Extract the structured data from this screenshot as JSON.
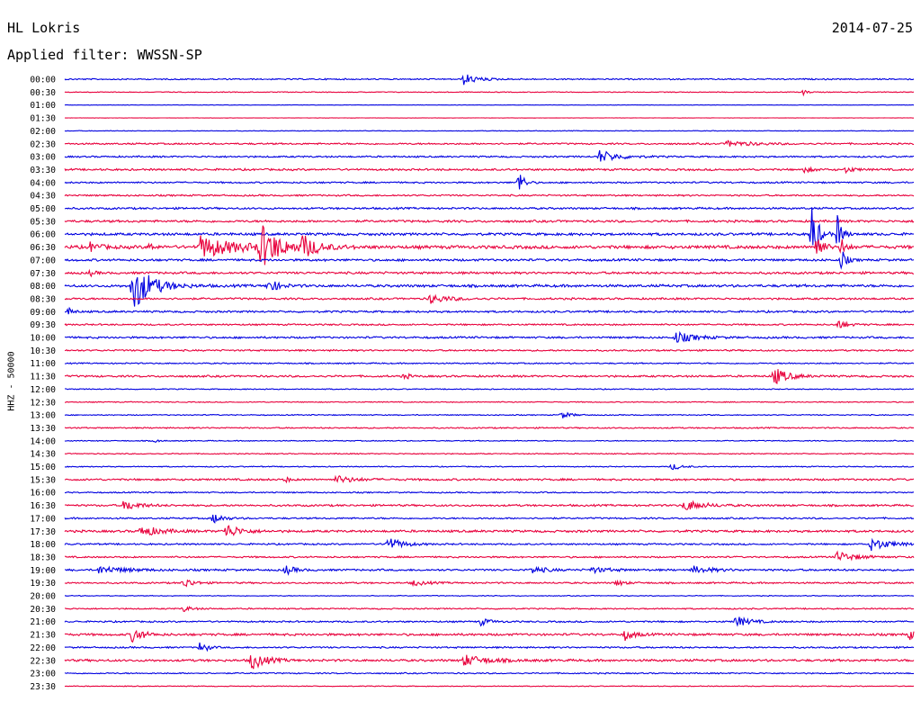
{
  "header": {
    "station": "HL Lokris",
    "date": "2014-07-25",
    "filter_label": "Applied filter: WWSSN-SP"
  },
  "chart_data": {
    "type": "line",
    "title": "HL Lokris",
    "ylabel": "HHZ - 50000",
    "series_colors": [
      "#0000e0",
      "#e8003c"
    ],
    "x_range_minutes_per_trace": [
      0,
      30
    ],
    "y_ticks": [
      "00:00",
      "00:30",
      "01:00",
      "01:30",
      "02:00",
      "02:30",
      "03:00",
      "03:30",
      "04:00",
      "04:30",
      "05:00",
      "05:30",
      "06:00",
      "06:30",
      "07:00",
      "07:30",
      "08:00",
      "08:30",
      "09:00",
      "09:30",
      "10:00",
      "10:30",
      "11:00",
      "11:30",
      "12:00",
      "12:30",
      "13:00",
      "13:30",
      "14:00",
      "14:30",
      "15:00",
      "15:30",
      "16:00",
      "16:30",
      "17:00",
      "17:30",
      "18:00",
      "18:30",
      "19:00",
      "19:30",
      "20:00",
      "20:30",
      "21:00",
      "21:30",
      "22:00",
      "22:30",
      "23:00",
      "23:30"
    ],
    "traces": [
      {
        "noise": 0.8,
        "events": [
          {
            "t": 0.47,
            "a": 6,
            "w": 0.015
          }
        ]
      },
      {
        "noise": 0.5,
        "events": [
          {
            "t": 0.87,
            "a": 3,
            "w": 0.005
          }
        ]
      },
      {
        "noise": 0.2,
        "events": []
      },
      {
        "noise": 0.2,
        "events": []
      },
      {
        "noise": 0.4,
        "events": []
      },
      {
        "noise": 1.0,
        "events": [
          {
            "t": 0.78,
            "a": 3,
            "w": 0.03
          }
        ]
      },
      {
        "noise": 1.0,
        "events": [
          {
            "t": 0.63,
            "a": 7,
            "w": 0.02
          }
        ]
      },
      {
        "noise": 1.2,
        "events": [
          {
            "t": 0.87,
            "a": 3,
            "w": 0.01
          },
          {
            "t": 0.92,
            "a": 3,
            "w": 0.01
          }
        ]
      },
      {
        "noise": 1.0,
        "events": [
          {
            "t": 0.535,
            "a": 16,
            "w": 0.005
          }
        ]
      },
      {
        "noise": 1.0,
        "events": []
      },
      {
        "noise": 1.2,
        "events": []
      },
      {
        "noise": 1.4,
        "events": []
      },
      {
        "noise": 1.6,
        "events": [
          {
            "t": 0.88,
            "a": 40,
            "w": 0.006
          },
          {
            "t": 0.91,
            "a": 20,
            "w": 0.005
          }
        ]
      },
      {
        "noise": 2.0,
        "events": [
          {
            "t": 0.03,
            "a": 5,
            "w": 0.01
          },
          {
            "t": 0.1,
            "a": 4,
            "w": 0.005
          },
          {
            "t": 0.16,
            "a": 12,
            "w": 0.04
          },
          {
            "t": 0.23,
            "a": 25,
            "w": 0.02
          },
          {
            "t": 0.28,
            "a": 12,
            "w": 0.015
          },
          {
            "t": 0.885,
            "a": 18,
            "w": 0.006
          },
          {
            "t": 0.915,
            "a": 10,
            "w": 0.005
          }
        ]
      },
      {
        "noise": 1.4,
        "events": [
          {
            "t": 0.915,
            "a": 12,
            "w": 0.005
          }
        ]
      },
      {
        "noise": 1.4,
        "events": [
          {
            "t": 0.03,
            "a": 3,
            "w": 0.005
          }
        ]
      },
      {
        "noise": 1.6,
        "events": [
          {
            "t": 0.08,
            "a": 28,
            "w": 0.02
          },
          {
            "t": 0.24,
            "a": 8,
            "w": 0.01
          }
        ]
      },
      {
        "noise": 1.2,
        "events": [
          {
            "t": 0.43,
            "a": 5,
            "w": 0.02
          }
        ]
      },
      {
        "noise": 1.2,
        "events": [
          {
            "t": 0.005,
            "a": 4,
            "w": 0.005
          }
        ]
      },
      {
        "noise": 1.0,
        "events": [
          {
            "t": 0.91,
            "a": 5,
            "w": 0.01
          }
        ]
      },
      {
        "noise": 1.2,
        "events": [
          {
            "t": 0.72,
            "a": 6,
            "w": 0.02
          }
        ]
      },
      {
        "noise": 1.0,
        "events": []
      },
      {
        "noise": 0.8,
        "events": []
      },
      {
        "noise": 1.2,
        "events": [
          {
            "t": 0.4,
            "a": 4,
            "w": 0.005
          },
          {
            "t": 0.835,
            "a": 10,
            "w": 0.015
          }
        ]
      },
      {
        "noise": 0.6,
        "events": []
      },
      {
        "noise": 0.6,
        "events": []
      },
      {
        "noise": 0.6,
        "events": [
          {
            "t": 0.585,
            "a": 4,
            "w": 0.01
          }
        ]
      },
      {
        "noise": 0.8,
        "events": []
      },
      {
        "noise": 0.6,
        "events": [
          {
            "t": 0.105,
            "a": 2,
            "w": 0.005
          }
        ]
      },
      {
        "noise": 0.6,
        "events": []
      },
      {
        "noise": 0.6,
        "events": [
          {
            "t": 0.715,
            "a": 4,
            "w": 0.01
          }
        ]
      },
      {
        "noise": 1.2,
        "events": [
          {
            "t": 0.26,
            "a": 3,
            "w": 0.005
          },
          {
            "t": 0.32,
            "a": 4,
            "w": 0.02
          }
        ]
      },
      {
        "noise": 0.8,
        "events": []
      },
      {
        "noise": 1.2,
        "events": [
          {
            "t": 0.07,
            "a": 6,
            "w": 0.015
          },
          {
            "t": 0.73,
            "a": 6,
            "w": 0.02
          }
        ]
      },
      {
        "noise": 1.0,
        "events": [
          {
            "t": 0.175,
            "a": 6,
            "w": 0.01
          }
        ]
      },
      {
        "noise": 1.4,
        "events": [
          {
            "t": 0.09,
            "a": 6,
            "w": 0.02
          },
          {
            "t": 0.19,
            "a": 8,
            "w": 0.015
          }
        ]
      },
      {
        "noise": 1.0,
        "events": [
          {
            "t": 0.38,
            "a": 8,
            "w": 0.015
          },
          {
            "t": 0.95,
            "a": 7,
            "w": 0.02
          }
        ]
      },
      {
        "noise": 1.0,
        "events": [
          {
            "t": 0.91,
            "a": 6,
            "w": 0.02
          }
        ]
      },
      {
        "noise": 1.2,
        "events": [
          {
            "t": 0.04,
            "a": 4,
            "w": 0.03
          },
          {
            "t": 0.26,
            "a": 5,
            "w": 0.01
          },
          {
            "t": 0.55,
            "a": 4,
            "w": 0.015
          },
          {
            "t": 0.62,
            "a": 3,
            "w": 0.02
          },
          {
            "t": 0.74,
            "a": 4,
            "w": 0.02
          }
        ]
      },
      {
        "noise": 1.0,
        "events": [
          {
            "t": 0.14,
            "a": 6,
            "w": 0.01
          },
          {
            "t": 0.41,
            "a": 3,
            "w": 0.015
          },
          {
            "t": 0.65,
            "a": 3,
            "w": 0.01
          }
        ]
      },
      {
        "noise": 0.5,
        "events": []
      },
      {
        "noise": 0.8,
        "events": [
          {
            "t": 0.14,
            "a": 3,
            "w": 0.01
          }
        ]
      },
      {
        "noise": 1.0,
        "events": [
          {
            "t": 0.49,
            "a": 4,
            "w": 0.01
          },
          {
            "t": 0.79,
            "a": 6,
            "w": 0.015
          }
        ]
      },
      {
        "noise": 1.4,
        "events": [
          {
            "t": 0.08,
            "a": 10,
            "w": 0.01
          },
          {
            "t": 0.66,
            "a": 6,
            "w": 0.01
          },
          {
            "t": 0.995,
            "a": 6,
            "w": 0.005
          }
        ]
      },
      {
        "noise": 1.0,
        "events": [
          {
            "t": 0.16,
            "a": 9,
            "w": 0.006
          }
        ]
      },
      {
        "noise": 1.4,
        "events": [
          {
            "t": 0.22,
            "a": 10,
            "w": 0.015
          },
          {
            "t": 0.47,
            "a": 6,
            "w": 0.025
          }
        ]
      },
      {
        "noise": 0.8,
        "events": []
      },
      {
        "noise": 0.5,
        "events": []
      }
    ]
  }
}
